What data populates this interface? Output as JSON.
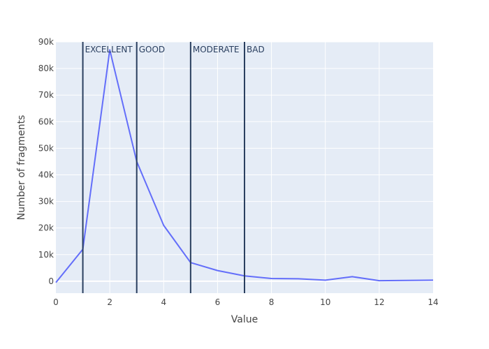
{
  "chart_data": {
    "type": "line",
    "title": "",
    "xlabel": "Value",
    "ylabel": "Number of fragments",
    "xlim": [
      0,
      14
    ],
    "ylim": [
      -4500,
      90000
    ],
    "x_ticks": [
      0,
      2,
      4,
      6,
      8,
      10,
      12,
      14
    ],
    "y_ticks": [
      0,
      10000,
      20000,
      30000,
      40000,
      50000,
      60000,
      70000,
      80000,
      90000
    ],
    "y_tick_labels": [
      "0",
      "10k",
      "20k",
      "30k",
      "40k",
      "50k",
      "60k",
      "70k",
      "80k",
      "90k"
    ],
    "grid": true,
    "series": [
      {
        "color": "#636efa",
        "x": [
          0,
          1,
          2,
          3,
          4,
          5,
          6,
          7,
          8,
          9,
          10,
          11,
          12,
          13,
          14
        ],
        "y": [
          -500,
          12000,
          87000,
          45000,
          21000,
          7000,
          4000,
          2000,
          1000,
          900,
          400,
          1700,
          200,
          300,
          400
        ]
      }
    ],
    "thresholds": [
      {
        "x": 1,
        "label": "EXCELLENT"
      },
      {
        "x": 3,
        "label": "GOOD"
      },
      {
        "x": 5,
        "label": "MODERATE"
      },
      {
        "x": 7,
        "label": "BAD"
      }
    ],
    "colors": {
      "plot_background": "#e5ecf6",
      "grid": "#ffffff",
      "threshold_line": "#2a3f5f",
      "text": "#444444"
    }
  }
}
